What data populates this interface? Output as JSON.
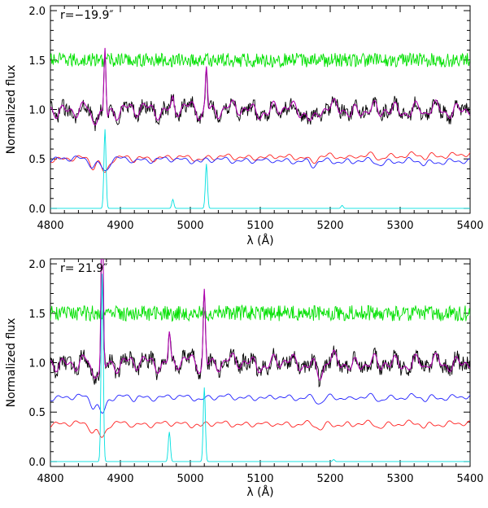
{
  "chart_data": [
    {
      "type": "line",
      "annotation": "r=−19.9″",
      "xlabel": "λ (Å)",
      "ylabel": "Normalized flux",
      "xlim": [
        4800,
        5400
      ],
      "ylim": [
        -0.05,
        2.05
      ],
      "xticks": [
        4800,
        4900,
        5000,
        5100,
        5200,
        5300,
        5400
      ],
      "xtick_labels": [
        "4800",
        "4900",
        "5000",
        "5100",
        "5200",
        "5300",
        "5400"
      ],
      "yticks": [
        0.0,
        0.5,
        1.0,
        1.5,
        2.0
      ],
      "ytick_labels": [
        "0.0",
        "0.5",
        "1.0",
        "1.5",
        "2.0"
      ],
      "series": [
        {
          "color": "#00e000",
          "kind": "noise",
          "base": 1.5,
          "amp": 0.045
        },
        {
          "color": "#000000",
          "kind": "observed",
          "base": 1.0,
          "amp": 0.05
        },
        {
          "color": "#b000b0",
          "kind": "fit",
          "base": 1.0
        },
        {
          "color": "#ff2020",
          "kind": "template",
          "base": 0.5
        },
        {
          "color": "#2020ff",
          "kind": "template2",
          "base": 0.5
        },
        {
          "color": "#00e0e0",
          "kind": "emission",
          "base": 0.0
        }
      ],
      "features": {
        "absorption": [
          [
            4861,
            0.12,
            4
          ],
          [
            5175,
            0.1,
            5
          ],
          [
            5270,
            0.05,
            4
          ],
          [
            5335,
            0.04,
            4
          ],
          [
            5015,
            0.03,
            3
          ],
          [
            4920,
            0.03,
            3
          ],
          [
            5110,
            0.03,
            4
          ],
          [
            5230,
            0.03,
            3
          ]
        ],
        "emission": [
          [
            4878,
            0.8,
            1.5
          ],
          [
            5023,
            0.45,
            1.5
          ],
          [
            4975,
            0.09,
            1.5
          ],
          [
            5217,
            0.03,
            1.5
          ]
        ],
        "hbeta_abs": [
          4878,
          0.4,
          3
        ]
      }
    },
    {
      "type": "line",
      "annotation": "r= 21.9″",
      "xlabel": "λ (Å)",
      "ylabel": "Normalized flux",
      "xlim": [
        4800,
        5400
      ],
      "ylim": [
        -0.05,
        2.05
      ],
      "xticks": [
        4800,
        4900,
        5000,
        5100,
        5200,
        5300,
        5400
      ],
      "xtick_labels": [
        "4800",
        "4900",
        "5000",
        "5100",
        "5200",
        "5300",
        "5400"
      ],
      "yticks": [
        0.0,
        0.5,
        1.0,
        1.5,
        2.0
      ],
      "ytick_labels": [
        "0.0",
        "0.5",
        "1.0",
        "1.5",
        "2.0"
      ],
      "series": [
        {
          "color": "#00e000",
          "kind": "noise",
          "base": 1.5,
          "amp": 0.05
        },
        {
          "color": "#000000",
          "kind": "observed",
          "base": 1.0,
          "amp": 0.055
        },
        {
          "color": "#b000b0",
          "kind": "fit",
          "base": 1.0
        },
        {
          "color": "#2020ff",
          "kind": "template",
          "base": 0.65
        },
        {
          "color": "#ff2020",
          "kind": "template2",
          "base": 0.38
        },
        {
          "color": "#00e0e0",
          "kind": "emission",
          "base": 0.0
        }
      ],
      "features": {
        "absorption": [
          [
            4861,
            0.12,
            4
          ],
          [
            5185,
            0.1,
            5
          ],
          [
            5270,
            0.05,
            4
          ],
          [
            5335,
            0.04,
            4
          ],
          [
            5015,
            0.03,
            3
          ],
          [
            4920,
            0.03,
            3
          ],
          [
            5110,
            0.03,
            4
          ],
          [
            5230,
            0.03,
            3
          ]
        ],
        "emission": [
          [
            4874,
            1.9,
            1.5
          ],
          [
            5020,
            0.75,
            1.5
          ],
          [
            4970,
            0.3,
            1.5
          ],
          [
            5205,
            0.02,
            1.5
          ]
        ],
        "hbeta_abs": [
          4874,
          0.45,
          3
        ]
      }
    }
  ]
}
